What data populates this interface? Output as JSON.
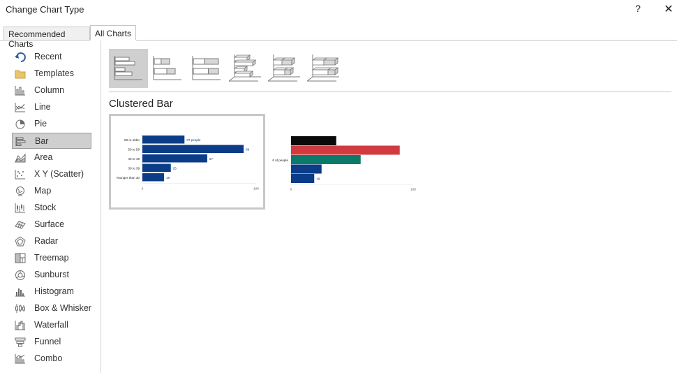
{
  "window": {
    "title": "Change Chart Type",
    "help_label": "?",
    "close_label": "✕"
  },
  "tabs": [
    {
      "label": "Recommended Charts"
    },
    {
      "label": "All Charts"
    }
  ],
  "sidebar": {
    "selected": "Bar",
    "items": [
      {
        "label": "Recent",
        "icon": "recent-icon"
      },
      {
        "label": "Templates",
        "icon": "folder-icon"
      },
      {
        "label": "Column",
        "icon": "column-chart-icon"
      },
      {
        "label": "Line",
        "icon": "line-chart-icon"
      },
      {
        "label": "Pie",
        "icon": "pie-chart-icon"
      },
      {
        "label": "Bar",
        "icon": "bar-chart-icon"
      },
      {
        "label": "Area",
        "icon": "area-chart-icon"
      },
      {
        "label": "X Y (Scatter)",
        "icon": "scatter-chart-icon"
      },
      {
        "label": "Map",
        "icon": "map-chart-icon"
      },
      {
        "label": "Stock",
        "icon": "stock-chart-icon"
      },
      {
        "label": "Surface",
        "icon": "surface-chart-icon"
      },
      {
        "label": "Radar",
        "icon": "radar-chart-icon"
      },
      {
        "label": "Treemap",
        "icon": "treemap-icon"
      },
      {
        "label": "Sunburst",
        "icon": "sunburst-icon"
      },
      {
        "label": "Histogram",
        "icon": "histogram-icon"
      },
      {
        "label": "Box & Whisker",
        "icon": "box-whisker-icon"
      },
      {
        "label": "Waterfall",
        "icon": "waterfall-icon"
      },
      {
        "label": "Funnel",
        "icon": "funnel-icon"
      },
      {
        "label": "Combo",
        "icon": "combo-chart-icon"
      }
    ]
  },
  "subtypes": [
    {
      "icon": "clustered-bar-icon",
      "selected": true
    },
    {
      "icon": "stacked-bar-icon"
    },
    {
      "icon": "100-stacked-bar-icon"
    },
    {
      "icon": "3d-clustered-bar-icon"
    },
    {
      "icon": "3d-stacked-bar-icon"
    },
    {
      "icon": "3d-100-stacked-bar-icon"
    }
  ],
  "main": {
    "chart_type_title": "Clustered Bar"
  },
  "colors": {
    "navy": "#0b3c87",
    "black": "#0a0a0a",
    "red": "#d13b40",
    "teal": "#0c7a6a",
    "selection": "#cfcfcf"
  },
  "chart_data": [
    {
      "type": "bar",
      "orientation": "horizontal",
      "categories": [
        "60 or older",
        "50 to 59",
        "40 to 49",
        "30 to 39",
        "Younger than 30"
      ],
      "values": [
        37,
        89,
        57,
        25,
        19
      ],
      "data_labels": [
        "37 people",
        "89",
        "57",
        "25",
        "19"
      ],
      "xlim": [
        0,
        100
      ],
      "x_ticks": [
        "0",
        "100"
      ],
      "colors": [
        "#0b3c87"
      ]
    },
    {
      "type": "bar",
      "orientation": "horizontal",
      "categories": [
        "# of people"
      ],
      "series": [
        {
          "values": [
            37
          ],
          "color": "#0a0a0a"
        },
        {
          "values": [
            89
          ],
          "color": "#d13b40"
        },
        {
          "values": [
            57
          ],
          "color": "#0c7a6a"
        },
        {
          "values": [
            25
          ],
          "color": "#0b3c87"
        },
        {
          "values": [
            19
          ],
          "color": "#0b3c87"
        }
      ],
      "visible_data_label": "19",
      "xlim": [
        0,
        100
      ],
      "x_ticks": [
        "0",
        "100"
      ]
    }
  ]
}
